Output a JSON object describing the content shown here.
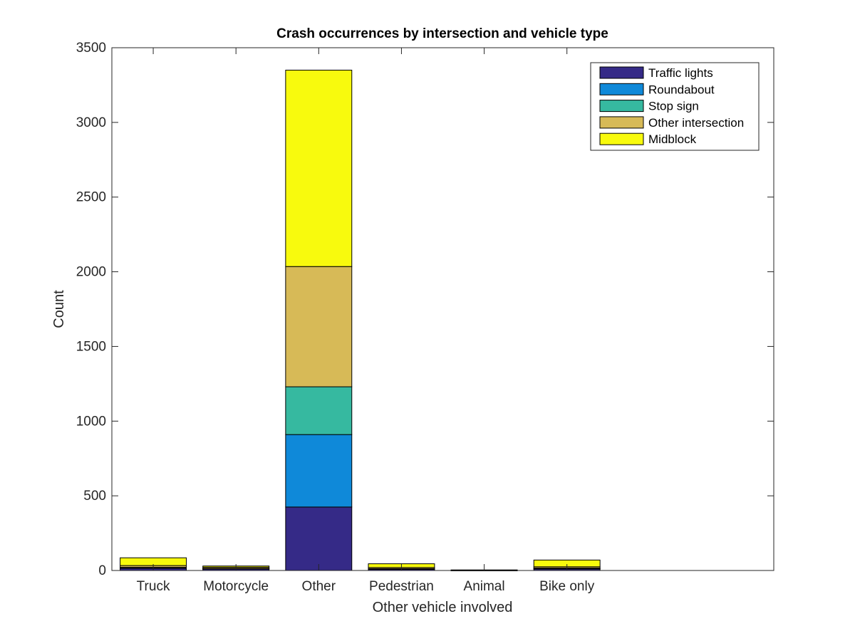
{
  "chart_data": {
    "type": "bar",
    "stacked": true,
    "title": "Crash occurrences by intersection and vehicle type",
    "xlabel": "Other vehicle involved",
    "ylabel": "Count",
    "categories": [
      "Truck",
      "Motorcycle",
      "Other",
      "Pedestrian",
      "Animal",
      "Bike only"
    ],
    "x_slots": 8,
    "ylim": [
      0,
      3500
    ],
    "yticks": [
      0,
      500,
      1000,
      1500,
      2000,
      2500,
      3000,
      3500
    ],
    "grid": false,
    "legend_position": "top-right",
    "series": [
      {
        "name": "Traffic lights",
        "color": "#352a87",
        "values": [
          15,
          10,
          425,
          8,
          1,
          10
        ]
      },
      {
        "name": "Roundabout",
        "color": "#0f89d9",
        "values": [
          3,
          2,
          485,
          2,
          0,
          3
        ]
      },
      {
        "name": "Stop sign",
        "color": "#36b9a0",
        "values": [
          3,
          2,
          320,
          2,
          0,
          3
        ]
      },
      {
        "name": "Other intersection",
        "color": "#d7ba57",
        "values": [
          12,
          8,
          805,
          8,
          1,
          9
        ]
      },
      {
        "name": "Midblock",
        "color": "#f8fa0d",
        "values": [
          52,
          8,
          1315,
          25,
          2,
          45
        ]
      }
    ]
  }
}
